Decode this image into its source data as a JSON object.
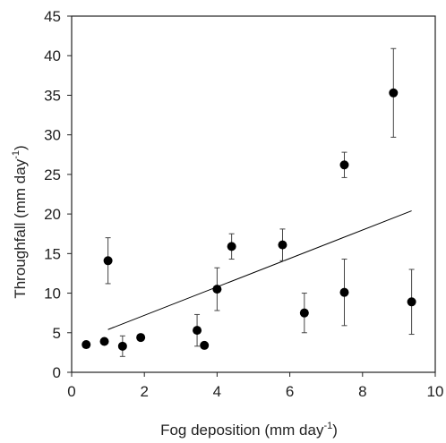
{
  "chart_data": {
    "type": "scatter",
    "xlabel": {
      "main": "Fog deposition (mm day",
      "sup": "-1",
      "end": ")"
    },
    "ylabel": {
      "main": "Throughfall (mm day",
      "sup": "-1",
      "end": ")"
    },
    "xlim": [
      0,
      10
    ],
    "ylim": [
      0,
      45
    ],
    "x_ticks": [
      "0",
      "2",
      "4",
      "6",
      "8",
      "10"
    ],
    "y_ticks": [
      "0",
      "5",
      "10",
      "15",
      "20",
      "25",
      "30",
      "35",
      "40",
      "45"
    ],
    "grid": false,
    "legend": "none",
    "points": [
      {
        "x": 0.4,
        "y": 3.5,
        "err": 0.0
      },
      {
        "x": 0.9,
        "y": 3.9,
        "err": 0.0
      },
      {
        "x": 1.0,
        "y": 14.1,
        "err": 2.9
      },
      {
        "x": 1.4,
        "y": 3.3,
        "err": 1.3
      },
      {
        "x": 1.9,
        "y": 4.4,
        "err": 0.0
      },
      {
        "x": 3.45,
        "y": 5.3,
        "err": 2.0
      },
      {
        "x": 3.65,
        "y": 3.4,
        "err": 0.0
      },
      {
        "x": 4.0,
        "y": 10.5,
        "err": 2.7
      },
      {
        "x": 4.4,
        "y": 15.9,
        "err": 1.6
      },
      {
        "x": 5.8,
        "y": 16.1,
        "err": 2.0
      },
      {
        "x": 6.4,
        "y": 7.5,
        "err": 2.5
      },
      {
        "x": 7.5,
        "y": 26.2,
        "err": 1.6
      },
      {
        "x": 7.5,
        "y": 10.1,
        "err": 4.2
      },
      {
        "x": 8.85,
        "y": 35.3,
        "err": 5.6
      },
      {
        "x": 9.35,
        "y": 8.9,
        "err": 4.1
      }
    ],
    "trendline": {
      "x": [
        1.0,
        9.35
      ],
      "y": [
        5.4,
        20.4
      ]
    },
    "colors": {
      "marker": "#000000",
      "line": "#000000",
      "frame": "#222222"
    }
  }
}
